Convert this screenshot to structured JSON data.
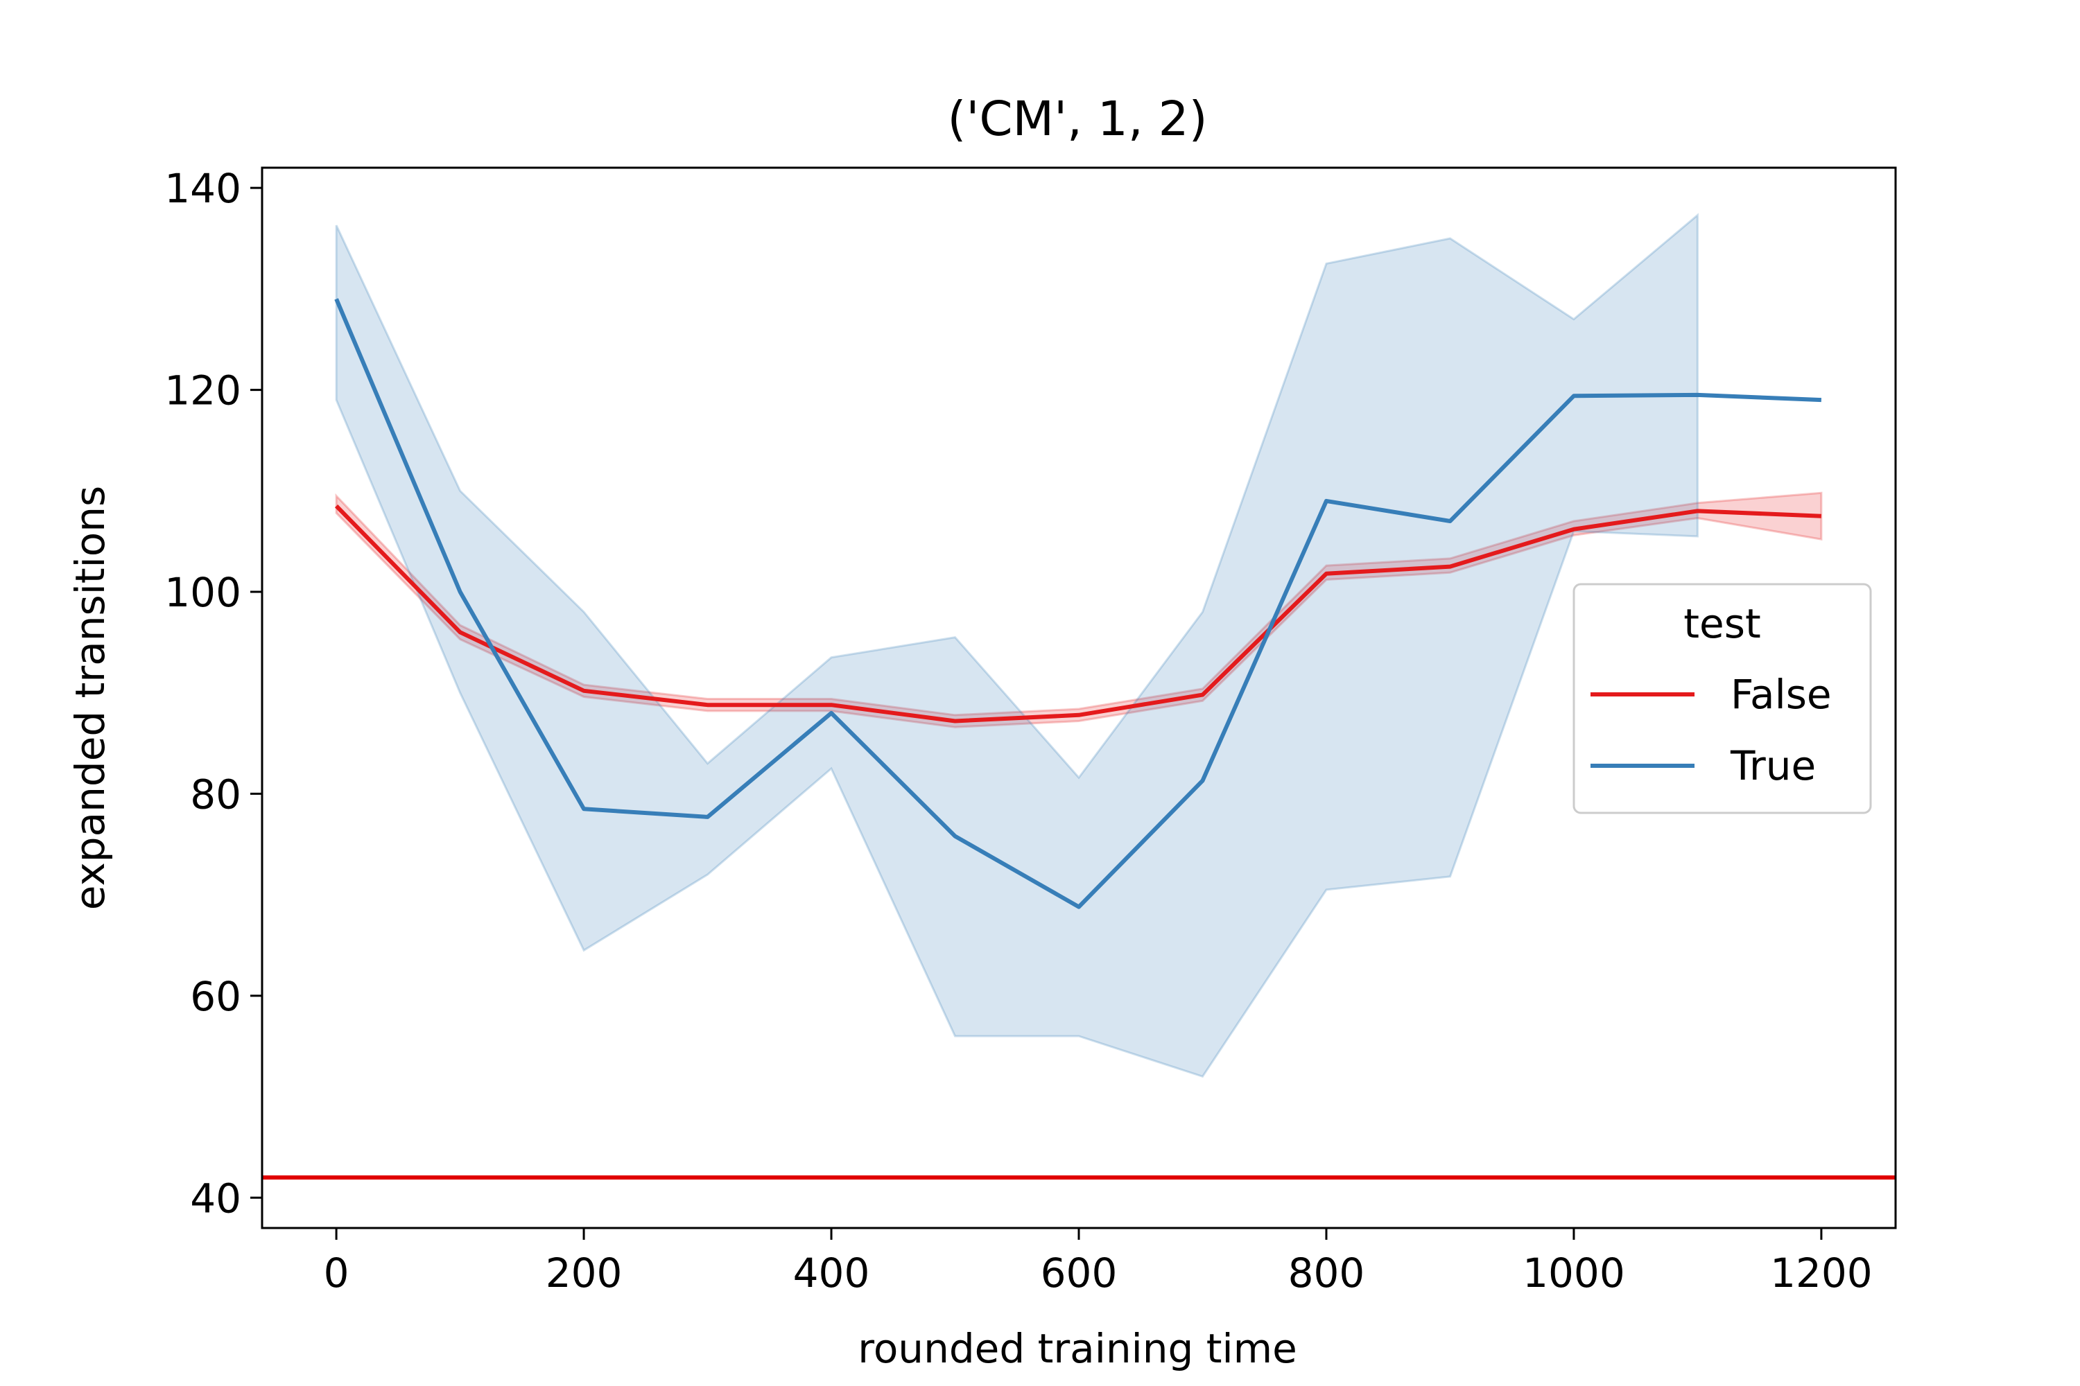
{
  "chart_data": {
    "type": "line",
    "title": "('CM', 1, 2)",
    "xlabel": "rounded training time",
    "ylabel": "expanded transitions",
    "xlim": [
      -60,
      1260
    ],
    "ylim": [
      37,
      142
    ],
    "xticks": [
      0,
      200,
      400,
      600,
      800,
      1000,
      1200
    ],
    "yticks": [
      40,
      60,
      80,
      100,
      120,
      140
    ],
    "grid": false,
    "legend": {
      "title": "test",
      "placement": "right"
    },
    "x": [
      0,
      100,
      200,
      300,
      400,
      500,
      600,
      700,
      800,
      900,
      1000,
      1100,
      1200
    ],
    "series": [
      {
        "name": "False",
        "color": "#e41a1c",
        "values": [
          108.5,
          96.0,
          90.2,
          88.8,
          88.8,
          87.2,
          87.8,
          89.8,
          101.8,
          102.5,
          106.2,
          108.0,
          107.5
        ],
        "ci_lower": [
          107.8,
          95.3,
          89.6,
          88.2,
          88.2,
          86.6,
          87.2,
          89.2,
          101.2,
          101.9,
          105.6,
          107.3,
          105.2
        ],
        "ci_upper": [
          109.5,
          96.7,
          90.8,
          89.4,
          89.4,
          87.8,
          88.4,
          90.4,
          102.6,
          103.3,
          107.0,
          108.8,
          109.8
        ]
      },
      {
        "name": "True",
        "color": "#377eb8",
        "values": [
          129.0,
          100.0,
          78.5,
          77.7,
          88.0,
          75.8,
          68.8,
          81.3,
          109.0,
          107.0,
          119.4,
          119.5,
          119.0
        ],
        "ci_lower": [
          119.0,
          90.0,
          64.5,
          72.0,
          82.5,
          56.0,
          56.0,
          52.0,
          70.5,
          71.8,
          106.0,
          105.5,
          null
        ],
        "ci_upper": [
          136.3,
          110.0,
          98.0,
          83.0,
          93.5,
          95.5,
          81.6,
          98.0,
          132.5,
          135.0,
          127.0,
          137.3,
          null
        ]
      }
    ],
    "reference_lines": [
      {
        "y": 42,
        "color": "#e00000"
      }
    ]
  }
}
